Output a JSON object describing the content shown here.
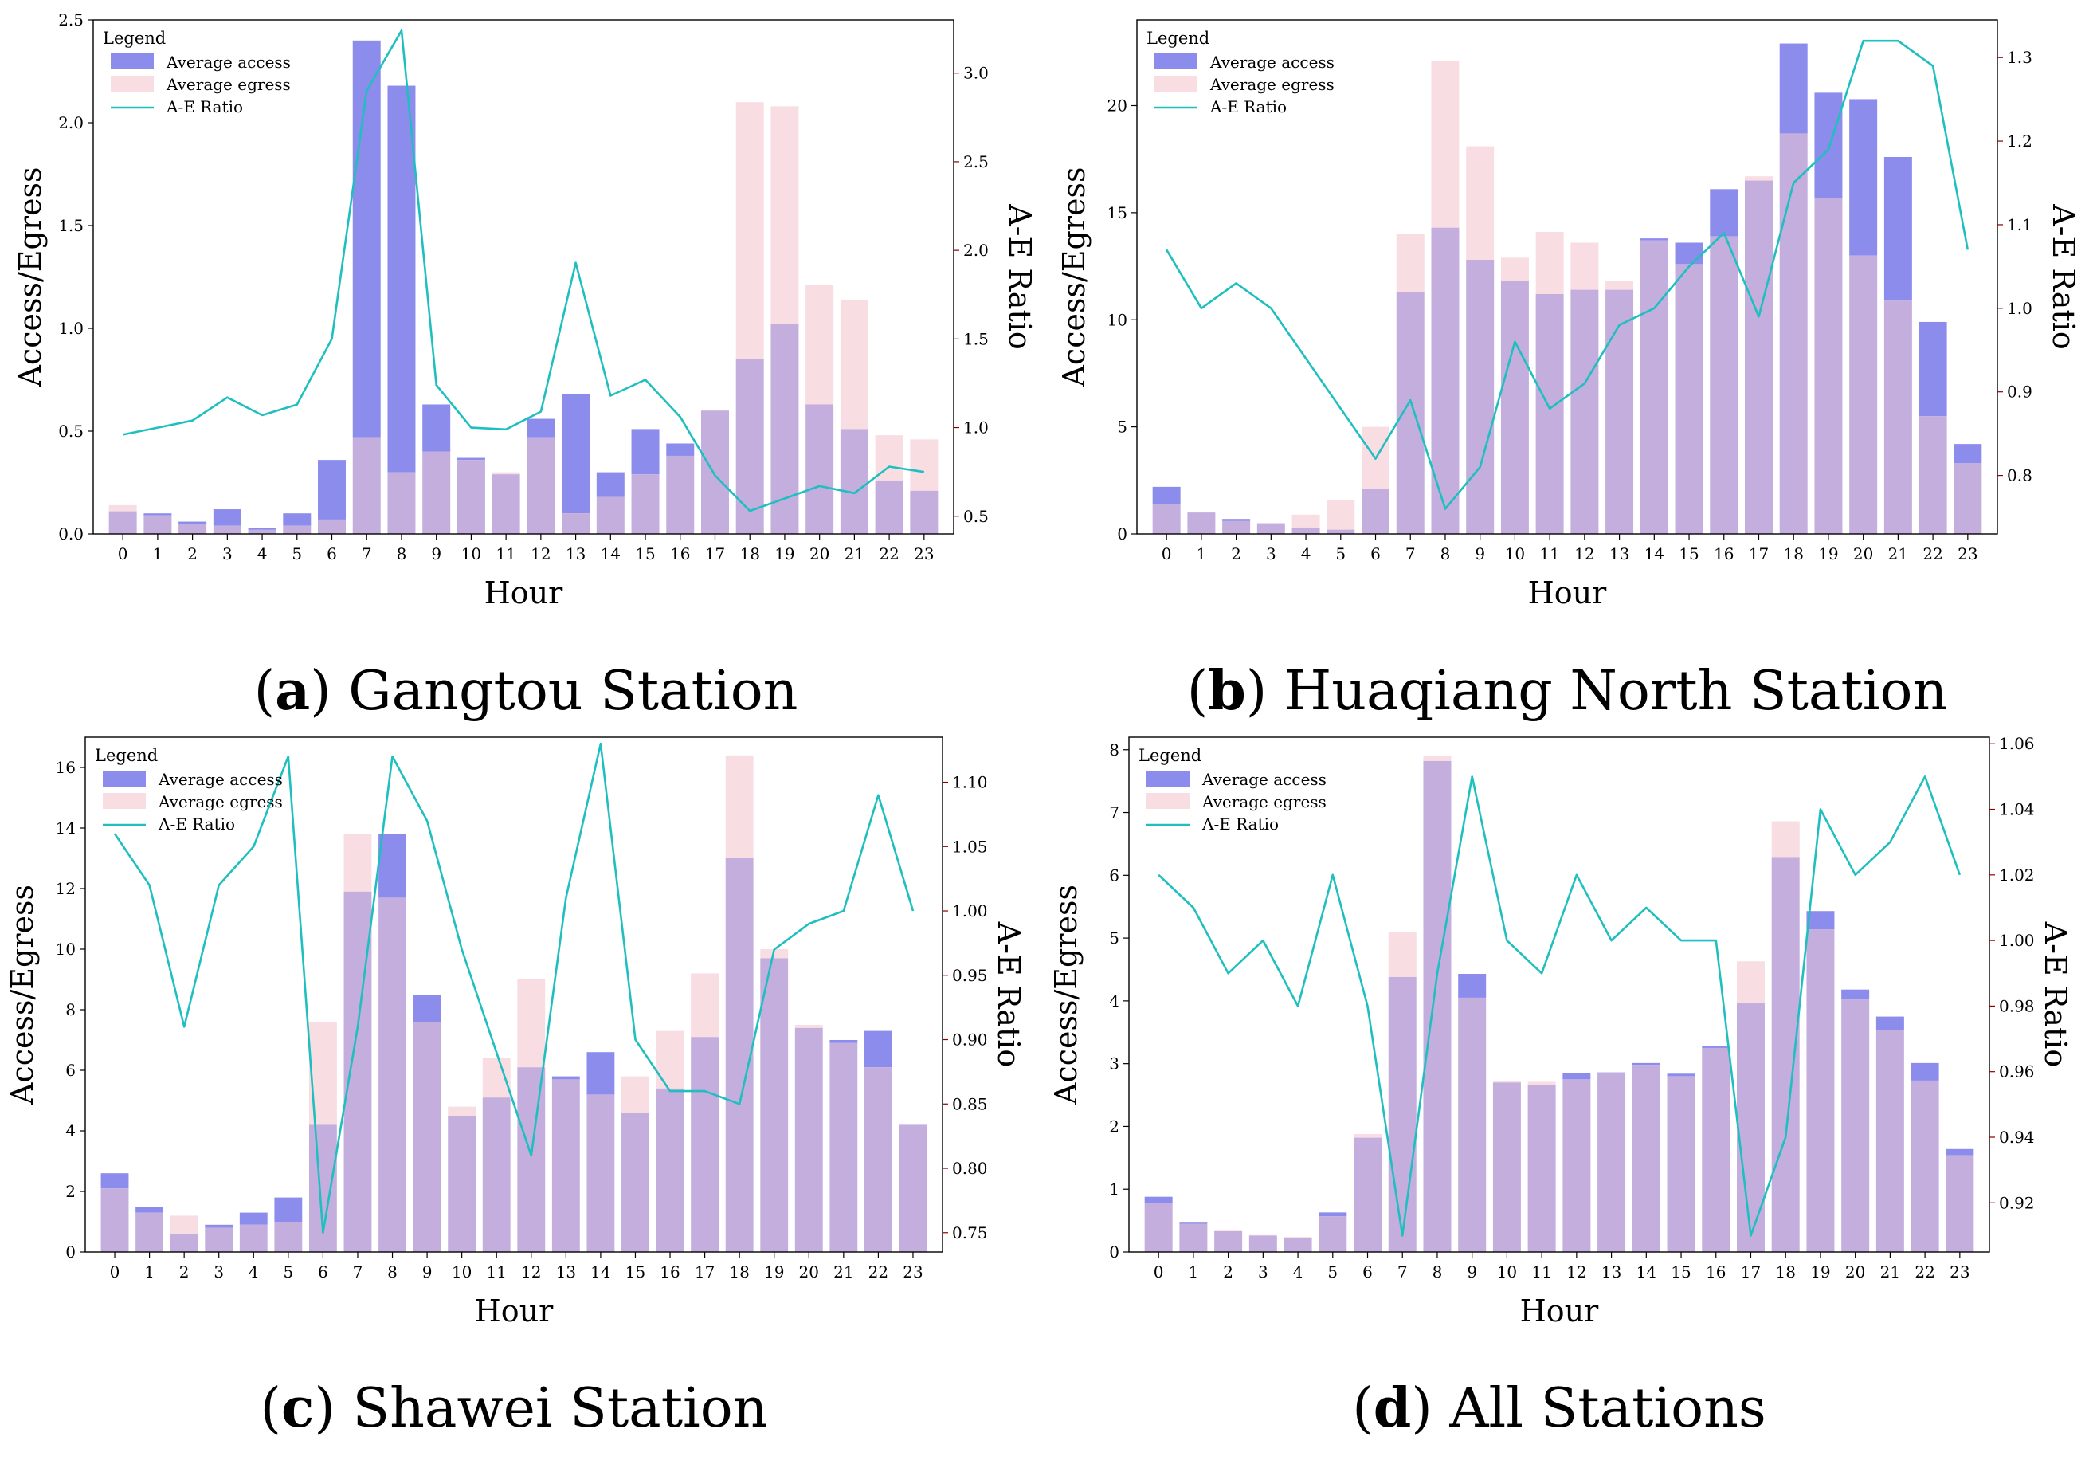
{
  "legend": {
    "title": "Legend",
    "access": "Average access",
    "egress": "Average egress",
    "ratio": "A-E Ratio"
  },
  "colors": {
    "access": "#8c8cec",
    "egress": "#f8dde2",
    "overlap": "#c3aede",
    "ratio": "#1fbfbf",
    "right_tick": "#8b0000"
  },
  "panels": [
    {
      "caption_letter": "a",
      "caption_text": "Gangtou Station",
      "xlabel": "Hour",
      "ylabel": "Access/Egress",
      "y2label": "A-E Ratio",
      "hours": [
        0,
        1,
        2,
        3,
        4,
        5,
        6,
        7,
        8,
        9,
        10,
        11,
        12,
        13,
        14,
        15,
        16,
        17,
        18,
        19,
        20,
        21,
        22,
        23
      ],
      "ylim": [
        0,
        2.5
      ],
      "yticks": [
        0.0,
        0.5,
        1.0,
        1.5,
        2.0,
        2.5
      ],
      "ytick_labels": [
        "0.0",
        "0.5",
        "1.0",
        "1.5",
        "2.0",
        "2.5"
      ],
      "y2lim": [
        0.4,
        3.3
      ],
      "y2ticks": [
        0.5,
        1.0,
        1.5,
        2.0,
        2.5,
        3.0
      ],
      "y2tick_labels": [
        "0.5",
        "1.0",
        "1.5",
        "2.0",
        "2.5",
        "3.0"
      ],
      "access": [
        0.11,
        0.1,
        0.06,
        0.12,
        0.03,
        0.1,
        0.36,
        2.4,
        2.18,
        0.63,
        0.37,
        0.29,
        0.56,
        0.68,
        0.3,
        0.51,
        0.44,
        0.6,
        0.85,
        1.02,
        0.63,
        0.51,
        0.26,
        0.21
      ],
      "egress": [
        0.14,
        0.09,
        0.05,
        0.04,
        0.02,
        0.04,
        0.07,
        0.47,
        0.3,
        0.4,
        0.36,
        0.3,
        0.47,
        0.1,
        0.18,
        0.29,
        0.38,
        0.6,
        2.1,
        2.08,
        1.21,
        1.14,
        0.48,
        0.46
      ],
      "ratio": [
        0.96,
        1.0,
        1.04,
        1.17,
        1.07,
        1.13,
        1.5,
        2.9,
        3.24,
        1.24,
        1.0,
        0.99,
        1.09,
        1.93,
        1.18,
        1.27,
        1.06,
        0.73,
        0.53,
        0.6,
        0.67,
        0.63,
        0.78,
        0.75
      ]
    },
    {
      "caption_letter": "b",
      "caption_text": "Huaqiang North Station",
      "xlabel": "Hour",
      "ylabel": "Access/Egress",
      "y2label": "A-E Ratio",
      "hours": [
        0,
        1,
        2,
        3,
        4,
        5,
        6,
        7,
        8,
        9,
        10,
        11,
        12,
        13,
        14,
        15,
        16,
        17,
        18,
        19,
        20,
        21,
        22,
        23
      ],
      "ylim": [
        0,
        24
      ],
      "yticks": [
        0,
        5,
        10,
        15,
        20
      ],
      "ytick_labels": [
        "0",
        "5",
        "10",
        "15",
        "20"
      ],
      "y2lim": [
        0.73,
        1.345
      ],
      "y2ticks": [
        0.8,
        0.9,
        1.0,
        1.1,
        1.2,
        1.3
      ],
      "y2tick_labels": [
        "0.8",
        "0.9",
        "1.0",
        "1.1",
        "1.2",
        "1.3"
      ],
      "access": [
        2.2,
        1.0,
        0.7,
        0.5,
        0.3,
        0.2,
        2.1,
        11.3,
        14.3,
        12.8,
        11.8,
        11.2,
        11.4,
        11.4,
        13.8,
        13.6,
        16.1,
        16.5,
        22.9,
        20.6,
        20.3,
        17.6,
        9.9,
        4.2
      ],
      "egress": [
        1.4,
        1.0,
        0.6,
        0.5,
        0.9,
        1.6,
        5.0,
        14.0,
        22.1,
        18.1,
        12.9,
        14.1,
        13.6,
        11.8,
        13.7,
        12.6,
        13.9,
        16.7,
        18.7,
        15.7,
        13.0,
        10.9,
        5.5,
        3.3
      ],
      "ratio": [
        1.07,
        1.0,
        1.03,
        1.0,
        0.94,
        0.88,
        0.82,
        0.89,
        0.76,
        0.81,
        0.96,
        0.88,
        0.91,
        0.98,
        1.0,
        1.05,
        1.09,
        0.99,
        1.15,
        1.19,
        1.32,
        1.32,
        1.29,
        1.07
      ]
    },
    {
      "caption_letter": "c",
      "caption_text": "Shawei Station",
      "xlabel": "Hour",
      "ylabel": "Access/Egress",
      "y2label": "A-E Ratio",
      "hours": [
        0,
        1,
        2,
        3,
        4,
        5,
        6,
        7,
        8,
        9,
        10,
        11,
        12,
        13,
        14,
        15,
        16,
        17,
        18,
        19,
        20,
        21,
        22,
        23
      ],
      "ylim": [
        0,
        17
      ],
      "yticks": [
        0,
        2,
        4,
        6,
        8,
        10,
        12,
        14,
        16
      ],
      "ytick_labels": [
        "0",
        "2",
        "4",
        "6",
        "8",
        "10",
        "12",
        "14",
        "16"
      ],
      "y2lim": [
        0.735,
        1.135
      ],
      "y2ticks": [
        0.75,
        0.8,
        0.85,
        0.9,
        0.95,
        1.0,
        1.05,
        1.1
      ],
      "y2tick_labels": [
        "0.75",
        "0.80",
        "0.85",
        "0.90",
        "0.95",
        "1.00",
        "1.05",
        "1.10"
      ],
      "access": [
        2.6,
        1.5,
        0.6,
        0.9,
        1.3,
        1.8,
        4.2,
        11.9,
        13.8,
        8.5,
        4.5,
        5.1,
        6.1,
        5.8,
        6.6,
        4.6,
        5.4,
        7.1,
        13.0,
        9.7,
        7.4,
        7.0,
        7.3,
        4.2
      ],
      "egress": [
        2.1,
        1.3,
        1.2,
        0.8,
        0.9,
        1.0,
        7.6,
        13.8,
        11.7,
        7.6,
        4.8,
        6.4,
        9.0,
        5.7,
        5.2,
        5.8,
        7.3,
        9.2,
        16.4,
        10.0,
        7.5,
        6.9,
        6.1,
        4.2
      ],
      "ratio": [
        1.06,
        1.02,
        0.91,
        1.02,
        1.05,
        1.12,
        0.75,
        0.91,
        1.12,
        1.07,
        0.97,
        0.89,
        0.81,
        1.01,
        1.13,
        0.9,
        0.86,
        0.86,
        0.85,
        0.97,
        0.99,
        1.0,
        1.09,
        1.0
      ]
    },
    {
      "caption_letter": "d",
      "caption_text": "All Stations",
      "xlabel": "Hour",
      "ylabel": "Access/Egress",
      "y2label": "A-E Ratio",
      "hours": [
        0,
        1,
        2,
        3,
        4,
        5,
        6,
        7,
        8,
        9,
        10,
        11,
        12,
        13,
        14,
        15,
        16,
        17,
        18,
        19,
        20,
        21,
        22,
        23
      ],
      "ylim": [
        0,
        8.2
      ],
      "yticks": [
        0,
        1,
        2,
        3,
        4,
        5,
        6,
        7,
        8
      ],
      "ytick_labels": [
        "0",
        "1",
        "2",
        "3",
        "4",
        "5",
        "6",
        "7",
        "8"
      ],
      "y2lim": [
        0.905,
        1.062
      ],
      "y2ticks": [
        0.92,
        0.94,
        0.96,
        0.98,
        1.0,
        1.02,
        1.04,
        1.06
      ],
      "y2tick_labels": [
        "0.92",
        "0.94",
        "0.96",
        "0.98",
        "1.00",
        "1.02",
        "1.04",
        "1.06"
      ],
      "access": [
        0.88,
        0.48,
        0.33,
        0.26,
        0.22,
        0.63,
        1.82,
        4.38,
        7.82,
        4.43,
        2.7,
        2.66,
        2.85,
        2.86,
        3.01,
        2.84,
        3.28,
        3.96,
        6.29,
        5.43,
        4.18,
        3.75,
        3.01,
        1.64
      ],
      "egress": [
        0.78,
        0.45,
        0.34,
        0.27,
        0.24,
        0.57,
        1.88,
        5.1,
        7.9,
        4.05,
        2.73,
        2.71,
        2.75,
        2.85,
        2.98,
        2.8,
        3.25,
        4.63,
        6.86,
        5.14,
        4.02,
        3.53,
        2.73,
        1.54
      ],
      "ratio": [
        1.02,
        1.01,
        0.99,
        1.0,
        0.98,
        1.02,
        0.98,
        0.91,
        0.99,
        1.05,
        1.0,
        0.99,
        1.02,
        1.0,
        1.01,
        1.0,
        1.0,
        0.91,
        0.94,
        1.04,
        1.02,
        1.03,
        1.05,
        1.02
      ]
    }
  ]
}
